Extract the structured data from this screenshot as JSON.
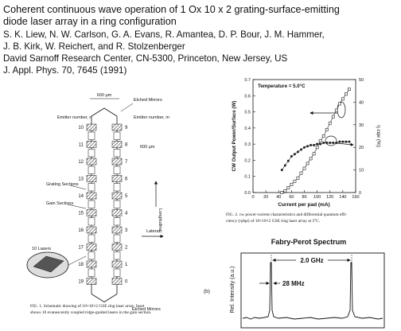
{
  "header": {
    "title_lines": [
      "Coherent continuous wave operation of 1 Ox 10 x 2 grating-surface-emitting",
      "diode laser array in a ring configuration"
    ],
    "author_lines": [
      "S. K. Liew, N. W. Carlson, G. A. Evans, R. Amantea, D. P. Bour, J. M. Hammer,",
      "J. B. Kirk, W. Reichert, and R. Stolzenberger"
    ],
    "affiliation": "David Sarnoff Research Center, CN-5300, Princeton, New Jersey, US",
    "citation": "J. Appl. Phys. 70, 7645 (1991)"
  },
  "figure1": {
    "width_label": "600 µm",
    "top_mirrors": "Etched Mirrors",
    "emitter_n": "Emitter number, n",
    "emitter_m": "Emitter number, m",
    "pitch_label": "600 µm",
    "grating_sections": "Grating Sections",
    "gain_sections": "Gain Sections",
    "longitudinal": "Longitudinal",
    "lateral": "Lateral",
    "inset_label": "10 Lasers",
    "bottom_mirrors": "Etched Mirrors",
    "emitters_left": [
      "10",
      "11",
      "12",
      "13",
      "14",
      "15",
      "16",
      "17",
      "18",
      "19"
    ],
    "emitters_right": [
      "9",
      "8",
      "7",
      "6",
      "5",
      "4",
      "3",
      "2",
      "1",
      "0"
    ],
    "panel": "(b)",
    "caption_lines": [
      "FIG. 1. Schematic drawing of 10×10×2 GSE ring laser array. Inset",
      "shows 10 evanescently coupled ridge-guided lasers in the gain section."
    ]
  },
  "chart_data": {
    "type": "line",
    "annotation": "Temperature = 5.0°C",
    "x_label": "Current per pad (mA)",
    "y_label": "CW Output Power/Surface (W)",
    "y2_label": "η cqe (%)",
    "x": [
      45,
      50,
      55,
      60,
      65,
      70,
      75,
      80,
      85,
      90,
      95,
      100,
      105,
      110,
      115,
      120,
      125,
      130,
      135,
      140,
      145,
      150
    ],
    "series": [
      {
        "color": "#222",
        "marker": "square",
        "values": [
          0.0,
          0.01,
          0.03,
          0.05,
          0.07,
          0.09,
          0.12,
          0.15,
          0.18,
          0.21,
          0.24,
          0.28,
          0.32,
          0.35,
          0.39,
          0.43,
          0.47,
          0.51,
          0.55,
          0.58,
          0.61,
          0.64
        ]
      },
      {
        "color": "#222",
        "marker": "circle",
        "axis": "y2",
        "values": [
          10,
          12,
          14,
          16,
          17,
          18,
          19,
          20,
          20.5,
          21,
          21,
          21.5,
          21.5,
          22,
          22,
          22,
          22,
          22,
          22.5,
          22.5,
          22.5,
          22.5
        ]
      }
    ],
    "xlim": [
      0,
      160
    ],
    "xticks": [
      0,
      20,
      40,
      60,
      80,
      100,
      120,
      140,
      160
    ],
    "ylim": [
      0,
      0.7
    ],
    "yticks": [
      {
        "value": 0,
        "label": "0.0"
      },
      0.1,
      0.2,
      0.3,
      0.4,
      0.5,
      0.6,
      0.7
    ],
    "y2lim": [
      0,
      50
    ],
    "y2ticks": [
      0,
      10,
      20,
      30,
      40,
      50
    ],
    "caption_lines": [
      "FIG. 2. cw power-current characteristics and differential quantum effi-",
      "ciency (ηdqe) of 10×10×2 GSE ring laser array at 5°C."
    ]
  },
  "figure3": {
    "title": "Fabry-Perot Spectrum",
    "y_label": "Rel. Intensity (a.u.)",
    "spacing": "2.0 GHz",
    "linewidth": "28 MHz"
  }
}
